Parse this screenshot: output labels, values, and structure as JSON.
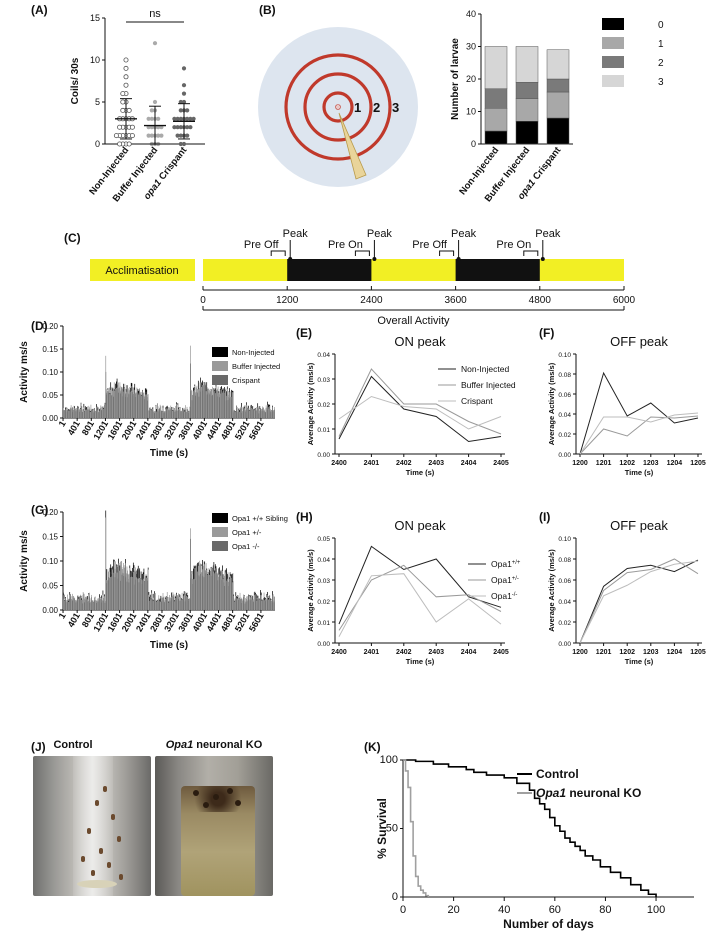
{
  "panel_letters": {
    "A": "(A)",
    "B": "(B)",
    "C": "(C)",
    "D": "(D)",
    "E": "(E)",
    "F": "(F)",
    "G": "(G)",
    "H": "(H)",
    "I": "(I)",
    "J": "(J)",
    "K": "(K)"
  },
  "chart_data": [
    {
      "id": "A",
      "type": "scatter",
      "ylabel": "Coils/ 30s",
      "ylim": [
        0,
        15
      ],
      "yticks": [
        0,
        5,
        10,
        15
      ],
      "categories": [
        "Non-Injected",
        "Buffer Injected",
        "Crispant"
      ],
      "category_italic_prefix": [
        "",
        "",
        "opa1"
      ],
      "significance": "ns",
      "series": [
        {
          "points": [
            0,
            0,
            0,
            0,
            1,
            1,
            1,
            1,
            1,
            1,
            2,
            2,
            2,
            2,
            2,
            3,
            3,
            3,
            3,
            3,
            4,
            4,
            4,
            5,
            5,
            6,
            6,
            7,
            8,
            9,
            10
          ],
          "mean": 3.0,
          "sd": 2.4,
          "color": "#555555",
          "marker": "open-circle"
        },
        {
          "points": [
            0,
            0,
            0,
            1,
            1,
            1,
            1,
            1,
            2,
            2,
            2,
            2,
            2,
            3,
            3,
            3,
            3,
            4,
            4,
            5,
            12
          ],
          "mean": 2.2,
          "sd": 2.3,
          "color": "#aaaaaa",
          "marker": "filled-circle"
        },
        {
          "points": [
            0,
            0,
            1,
            1,
            1,
            1,
            2,
            2,
            2,
            2,
            2,
            2,
            3,
            3,
            3,
            3,
            3,
            3,
            3,
            4,
            4,
            4,
            5,
            5,
            6,
            7,
            9
          ],
          "mean": 2.7,
          "sd": 2.1,
          "color": "#666666",
          "marker": "filled-circle"
        }
      ]
    },
    {
      "id": "B_diagram",
      "type": "diagram",
      "labels": [
        "1",
        "2",
        "3"
      ]
    },
    {
      "id": "B",
      "type": "bar",
      "stacked": true,
      "ylabel": "Number of larvae",
      "ylim": [
        0,
        40
      ],
      "yticks": [
        0,
        10,
        20,
        30,
        40
      ],
      "categories": [
        "Non-Injected",
        "Buffer Injected",
        "Crispant"
      ],
      "category_italic_prefix": [
        "",
        "",
        "opa1"
      ],
      "series": [
        {
          "name": "0",
          "values": [
            4,
            7,
            8
          ],
          "color": "#000000"
        },
        {
          "name": "1",
          "values": [
            7,
            7,
            8
          ],
          "color": "#a8a8a8"
        },
        {
          "name": "2",
          "values": [
            6,
            5,
            4
          ],
          "color": "#7a7a7a"
        },
        {
          "name": "3",
          "values": [
            13,
            11,
            9
          ],
          "color": "#d6d6d6"
        }
      ],
      "legend": "right"
    },
    {
      "id": "C",
      "type": "timeline",
      "acclimatisation_label": "Acclimatisation",
      "ticks": [
        0,
        1200,
        2400,
        3600,
        4800,
        6000
      ],
      "dark_periods": [
        [
          1200,
          2400
        ],
        [
          3600,
          4800
        ]
      ],
      "window_labels": {
        "pre_off": "Pre Off",
        "pre_on": "Pre On",
        "peak": "Peak"
      },
      "windows": [
        {
          "label": "Pre Off",
          "at": 1200
        },
        {
          "label": "Pre On",
          "at": 2400
        },
        {
          "label": "Pre Off",
          "at": 3600
        },
        {
          "label": "Pre On",
          "at": 4800
        }
      ],
      "overall_label": "Overall Activity",
      "colors": {
        "light": "#f2ef24",
        "dark": "#111111"
      }
    },
    {
      "id": "D",
      "type": "bar",
      "ylabel": "Activity ms/s",
      "xlabel": "Time (s)",
      "ylim": [
        0,
        0.2
      ],
      "yticks": [
        0.0,
        0.05,
        0.1,
        0.15,
        0.2
      ],
      "xticks": [
        1,
        401,
        801,
        1201,
        1601,
        2001,
        2401,
        2801,
        3201,
        3601,
        4001,
        4401,
        4801,
        5201,
        5601
      ],
      "profile": {
        "baseline": 0.025,
        "dark_level": 0.075,
        "on_peak": 0.145,
        "off_peak": 0.115
      },
      "series": [
        {
          "name": "Non-Injected",
          "color": "#000000"
        },
        {
          "name": "Buffer Injected",
          "color": "#9a9a9a"
        },
        {
          "name": "Crispant",
          "color": "#6a6a6a"
        }
      ]
    },
    {
      "id": "E",
      "type": "line",
      "title": "ON peak",
      "ylabel": "Average Activity (ms/s)",
      "xlabel": "Time (s)",
      "x": [
        2400,
        2401,
        2402,
        2403,
        2404,
        2405
      ],
      "ylim": [
        0,
        0.04
      ],
      "yticks": [
        0.0,
        0.01,
        0.02,
        0.03,
        0.04
      ],
      "series": [
        {
          "name": "Non-Injected",
          "values": [
            0.006,
            0.031,
            0.018,
            0.015,
            0.005,
            0.007
          ],
          "color": "#222222"
        },
        {
          "name": "Buffer Injected",
          "values": [
            0.007,
            0.034,
            0.02,
            0.02,
            0.013,
            0.008
          ],
          "color": "#9a9a9a"
        },
        {
          "name": "Crispant",
          "values": [
            0.014,
            0.023,
            0.019,
            0.018,
            0.01,
            0.015
          ],
          "color": "#bdbdbd"
        }
      ]
    },
    {
      "id": "F",
      "type": "line",
      "title": "OFF peak",
      "ylabel": "Average Activity (ms/s)",
      "xlabel": "Time (s)",
      "x": [
        1200,
        1201,
        1202,
        1203,
        1204,
        1205
      ],
      "ylim": [
        0,
        0.1
      ],
      "yticks": [
        0.0,
        0.02,
        0.04,
        0.06,
        0.08,
        0.1
      ],
      "series": [
        {
          "values": [
            0.0,
            0.081,
            0.038,
            0.051,
            0.031,
            0.036
          ],
          "color": "#222222"
        },
        {
          "values": [
            0.0,
            0.025,
            0.018,
            0.037,
            0.036,
            0.038
          ],
          "color": "#9a9a9a"
        },
        {
          "values": [
            0.0,
            0.037,
            0.037,
            0.032,
            0.039,
            0.041
          ],
          "color": "#bdbdbd"
        }
      ]
    },
    {
      "id": "G",
      "type": "bar",
      "ylabel": "Activity ms/s",
      "xlabel": "Time (s)",
      "ylim": [
        0,
        0.2
      ],
      "yticks": [
        0.0,
        0.05,
        0.1,
        0.15,
        0.2
      ],
      "xticks": [
        1,
        401,
        801,
        1201,
        1601,
        2001,
        2401,
        2801,
        3201,
        3601,
        4001,
        4401,
        4801,
        5201,
        5601
      ],
      "profile": {
        "baseline": 0.03,
        "dark_level": 0.095,
        "on_peak": 0.185,
        "off_peak": 0.17
      },
      "series": [
        {
          "name": "Opa1 +/+ Sibling",
          "color": "#000000"
        },
        {
          "name": "Opa1 +/-",
          "color": "#9a9a9a"
        },
        {
          "name": "Opa1 -/-",
          "color": "#6a6a6a"
        }
      ]
    },
    {
      "id": "H",
      "type": "line",
      "title": "ON peak",
      "ylabel": "Average Activity (ms/s)",
      "xlabel": "Time (s)",
      "x": [
        2400,
        2401,
        2402,
        2403,
        2404,
        2405
      ],
      "ylim": [
        0,
        0.05
      ],
      "yticks": [
        0.0,
        0.01,
        0.02,
        0.03,
        0.04,
        0.05
      ],
      "series": [
        {
          "name": "Opa1",
          "superscript": "+/+",
          "values": [
            0.009,
            0.046,
            0.035,
            0.04,
            0.022,
            0.017
          ],
          "color": "#222222"
        },
        {
          "name": "Opa1",
          "superscript": "+/-",
          "values": [
            0.006,
            0.03,
            0.037,
            0.022,
            0.023,
            0.015
          ],
          "color": "#9a9a9a"
        },
        {
          "name": "Opa1",
          "superscript": "-/-",
          "values": [
            0.003,
            0.032,
            0.033,
            0.01,
            0.021,
            0.009
          ],
          "color": "#bdbdbd"
        }
      ]
    },
    {
      "id": "I",
      "type": "line",
      "title": "OFF peak",
      "ylabel": "Average Activity (ms/s)",
      "xlabel": "Time (s)",
      "x": [
        1200,
        1201,
        1202,
        1203,
        1204,
        1205
      ],
      "ylim": [
        0,
        0.1
      ],
      "yticks": [
        0.0,
        0.02,
        0.04,
        0.06,
        0.08,
        0.1
      ],
      "series": [
        {
          "values": [
            0.0,
            0.054,
            0.071,
            0.074,
            0.068,
            0.079
          ],
          "color": "#222222"
        },
        {
          "values": [
            0.0,
            0.05,
            0.067,
            0.07,
            0.08,
            0.066
          ],
          "color": "#9a9a9a"
        },
        {
          "values": [
            0.0,
            0.045,
            0.055,
            0.068,
            0.075,
            0.078
          ],
          "color": "#bdbdbd"
        }
      ]
    },
    {
      "id": "K",
      "type": "line",
      "step": true,
      "ylabel": "% Survival",
      "xlabel": "Number of days",
      "xlim": [
        0,
        115
      ],
      "ylim": [
        0,
        100
      ],
      "xticks": [
        0,
        20,
        40,
        60,
        80,
        100
      ],
      "yticks": [
        0,
        50,
        100
      ],
      "series": [
        {
          "name": "Control",
          "color": "#000000",
          "x": [
            0,
            5,
            12,
            18,
            25,
            28,
            33,
            40,
            45,
            50,
            52,
            54,
            56,
            58,
            60,
            62,
            64,
            66,
            68,
            70,
            72,
            75,
            78,
            82,
            86,
            90,
            94,
            97,
            100
          ],
          "y": [
            100,
            99,
            97,
            95,
            93,
            91,
            89,
            87,
            83,
            78,
            72,
            68,
            64,
            58,
            52,
            48,
            43,
            40,
            37,
            34,
            30,
            27,
            22,
            18,
            14,
            9,
            5,
            2,
            0
          ]
        },
        {
          "name": "Opa1",
          "name_suffix": "neuronal KO",
          "color": "#a0a0a0",
          "x": [
            0,
            1,
            2,
            3,
            4,
            5,
            6,
            7,
            8,
            9,
            10
          ],
          "y": [
            100,
            92,
            80,
            55,
            30,
            15,
            8,
            5,
            3,
            1,
            0
          ]
        }
      ]
    }
  ],
  "photos": {
    "left_label": "Control",
    "right_label": "Opa1",
    "right_label_suffix": "neuronal KO"
  }
}
